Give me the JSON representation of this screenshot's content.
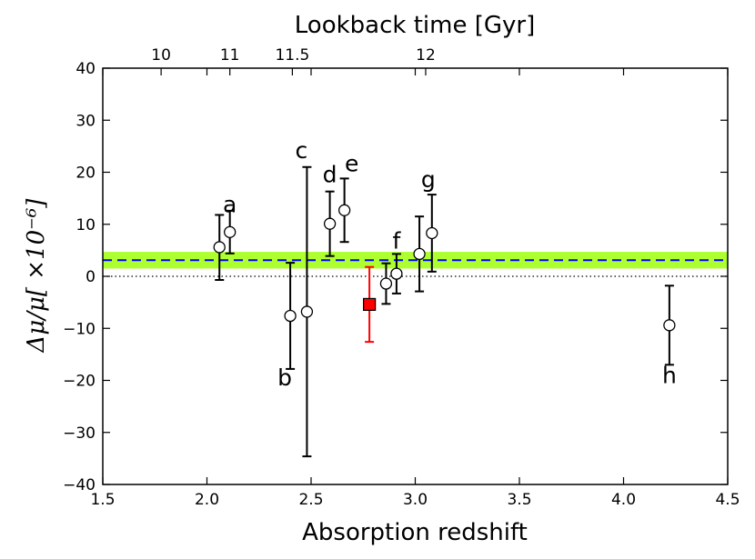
{
  "chart_data": {
    "type": "scatter",
    "title": "",
    "xlabel": "Absorption redshift",
    "ylabel": "Δμ/μ[ ×10⁻⁶]",
    "top_xlabel": "Lookback time [Gyr]",
    "xlim": [
      1.5,
      4.5
    ],
    "ylim": [
      -40,
      40
    ],
    "xticks": [
      1.5,
      2.0,
      2.5,
      3.0,
      3.5,
      4.0,
      4.5
    ],
    "xtick_labels": [
      "1.5",
      "2.0",
      "2.5",
      "3.0",
      "3.5",
      "4.0",
      "4.5"
    ],
    "yticks": [
      -40,
      -30,
      -20,
      -10,
      0,
      10,
      20,
      30,
      40
    ],
    "ytick_labels": [
      "−40",
      "−30",
      "−20",
      "−10",
      "0",
      "10",
      "20",
      "30",
      "40"
    ],
    "top_ticks": [
      {
        "label": "10",
        "z": 1.78
      },
      {
        "label": "11",
        "z": 2.11
      },
      {
        "label": "11.5",
        "z": 2.41
      },
      {
        "label": "12",
        "z": 3.05
      }
    ],
    "grid": false,
    "weighted_mean": {
      "value": 3.1,
      "band_low": 1.5,
      "band_high": 4.7,
      "band_color": "#adff2f",
      "line_color": "#0000ff"
    },
    "zero_line": {
      "value": 0,
      "style": "dotted"
    },
    "points": [
      {
        "z": 2.06,
        "dmu": 5.6,
        "err_low": 6.3,
        "err_high": 6.2,
        "label": ""
      },
      {
        "z": 2.11,
        "dmu": 8.5,
        "err_low": 4.1,
        "err_high": 4.1,
        "label": "a"
      },
      {
        "z": 2.4,
        "dmu": -7.6,
        "err_low": 10.2,
        "err_high": 10.2,
        "label": "b"
      },
      {
        "z": 2.48,
        "dmu": -6.8,
        "err_low": 27.8,
        "err_high": 27.8,
        "label": "c"
      },
      {
        "z": 2.59,
        "dmu": 10.1,
        "err_low": 6.2,
        "err_high": 6.2,
        "label": "d"
      },
      {
        "z": 2.66,
        "dmu": 12.7,
        "err_low": 6.1,
        "err_high": 6.1,
        "label": "e"
      },
      {
        "z": 2.86,
        "dmu": -1.4,
        "err_low": 3.9,
        "err_high": 3.9,
        "label": ""
      },
      {
        "z": 2.91,
        "dmu": 0.5,
        "err_low": 3.8,
        "err_high": 3.8,
        "label": "f"
      },
      {
        "z": 3.02,
        "dmu": 4.3,
        "err_low": 7.2,
        "err_high": 7.2,
        "label": ""
      },
      {
        "z": 3.08,
        "dmu": 8.3,
        "err_low": 7.4,
        "err_high": 7.4,
        "label": "g"
      },
      {
        "z": 4.22,
        "dmu": -9.4,
        "err_low": 7.6,
        "err_high": 7.6,
        "label": "h"
      }
    ],
    "highlighted_point": {
      "z": 2.78,
      "dmu": -5.4,
      "err_low": 7.2,
      "err_high": 7.2,
      "color": "#ff0000"
    }
  }
}
